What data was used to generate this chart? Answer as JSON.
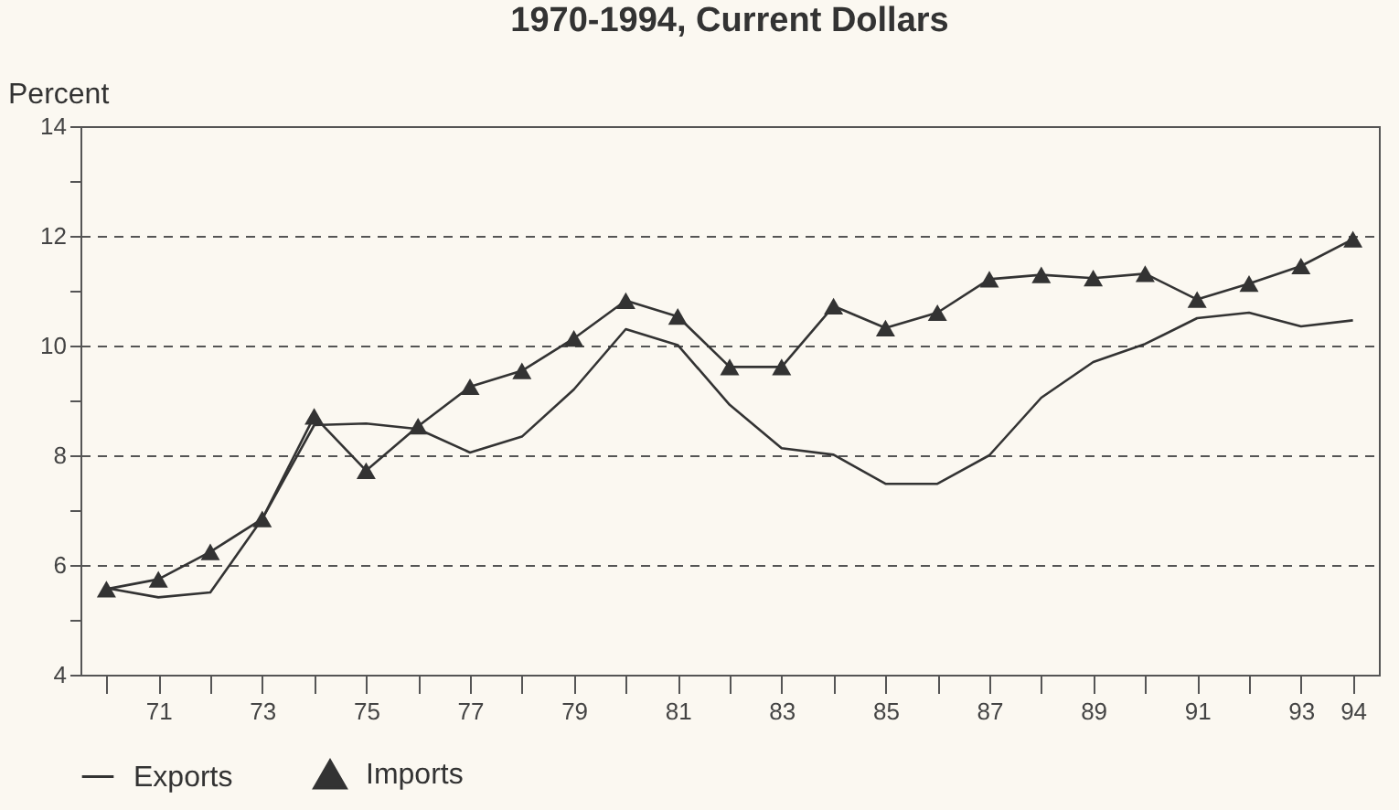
{
  "chart_data": {
    "type": "line",
    "title": "1970-1994, Current Dollars",
    "ylabel": "Percent",
    "x": [
      1970,
      1971,
      1972,
      1973,
      1974,
      1975,
      1976,
      1977,
      1978,
      1979,
      1980,
      1981,
      1982,
      1983,
      1984,
      1985,
      1986,
      1987,
      1988,
      1989,
      1990,
      1991,
      1992,
      1993,
      1994
    ],
    "series": [
      {
        "name": "Exports",
        "color": "#333333",
        "marker": "none",
        "values": [
          5.58,
          5.41,
          5.5,
          6.84,
          8.55,
          8.58,
          8.48,
          8.05,
          8.34,
          9.2,
          10.3,
          10.01,
          8.92,
          8.13,
          8.01,
          7.48,
          7.48,
          8.0,
          9.05,
          9.7,
          10.03,
          10.5,
          10.6,
          10.35,
          10.46
        ]
      },
      {
        "name": "Imports",
        "color": "#333333",
        "marker": "triangle",
        "values": [
          5.56,
          5.74,
          6.24,
          6.84,
          8.71,
          7.72,
          8.53,
          9.25,
          9.54,
          10.13,
          10.82,
          10.53,
          9.61,
          9.61,
          10.72,
          10.32,
          10.6,
          11.21,
          11.29,
          11.23,
          11.31,
          10.84,
          11.13,
          11.45,
          11.94
        ]
      }
    ],
    "xlim": [
      1969.5,
      1994.5
    ],
    "xticks": [
      {
        "value": 1970,
        "label": null
      },
      {
        "value": 1971,
        "label": "71"
      },
      {
        "value": 1972,
        "label": null
      },
      {
        "value": 1973,
        "label": "73"
      },
      {
        "value": 1974,
        "label": null
      },
      {
        "value": 1975,
        "label": "75"
      },
      {
        "value": 1976,
        "label": null
      },
      {
        "value": 1977,
        "label": "77"
      },
      {
        "value": 1978,
        "label": null
      },
      {
        "value": 1979,
        "label": "79"
      },
      {
        "value": 1980,
        "label": null
      },
      {
        "value": 1981,
        "label": "81"
      },
      {
        "value": 1982,
        "label": null
      },
      {
        "value": 1983,
        "label": "83"
      },
      {
        "value": 1984,
        "label": null
      },
      {
        "value": 1985,
        "label": "85"
      },
      {
        "value": 1986,
        "label": null
      },
      {
        "value": 1987,
        "label": "87"
      },
      {
        "value": 1988,
        "label": null
      },
      {
        "value": 1989,
        "label": "89"
      },
      {
        "value": 1990,
        "label": null
      },
      {
        "value": 1991,
        "label": "91"
      },
      {
        "value": 1992,
        "label": null
      },
      {
        "value": 1993,
        "label": "93"
      },
      {
        "value": 1994,
        "label": "94"
      }
    ],
    "ylim": [
      4,
      14
    ],
    "yticks": [
      4,
      {
        "value": 5,
        "label": null
      },
      6,
      {
        "value": 7,
        "label": null
      },
      8,
      {
        "value": 9,
        "label": null
      },
      10,
      {
        "value": 11,
        "label": null
      },
      12,
      {
        "value": 13,
        "label": null
      },
      14
    ],
    "grid": "y",
    "line_style": "solid",
    "legend": "bottom"
  }
}
